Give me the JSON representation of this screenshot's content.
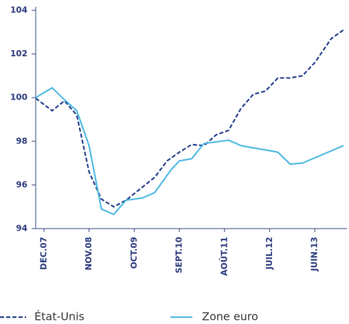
{
  "chart_data": {
    "type": "line",
    "xlim": [
      "2007-10",
      "2014-01"
    ],
    "xticks": [
      {
        "value": "2007-12",
        "label": "DEC.07"
      },
      {
        "value": "2008-11",
        "label": "NOV.08"
      },
      {
        "value": "2009-10",
        "label": "OCT.09"
      },
      {
        "value": "2010-09",
        "label": "SEPT.10"
      },
      {
        "value": "2011-08",
        "label": "AOÛT.11"
      },
      {
        "value": "2012-07",
        "label": "JUIL.12"
      },
      {
        "value": "2013-06",
        "label": "JUIN.13"
      }
    ],
    "ylim": [
      94,
      104
    ],
    "yticks": [
      94,
      96,
      98,
      100,
      102,
      104
    ],
    "series": [
      {
        "name": "État-Unis",
        "color": "#1f3a8a",
        "dashed": true,
        "x": [
          "2007-10",
          "2008-02",
          "2008-05",
          "2008-08",
          "2008-11",
          "2009-02",
          "2009-05",
          "2009-08",
          "2009-11",
          "2010-03",
          "2010-06",
          "2010-09",
          "2010-12",
          "2011-03",
          "2011-06",
          "2011-09",
          "2011-12",
          "2012-03",
          "2012-06",
          "2012-09",
          "2012-12",
          "2013-03",
          "2013-06",
          "2013-10",
          "2014-01"
        ],
        "values": [
          99.97,
          99.4,
          99.85,
          99.2,
          96.6,
          95.35,
          95.0,
          95.3,
          95.75,
          96.35,
          97.1,
          97.5,
          97.85,
          97.8,
          98.3,
          98.5,
          99.5,
          100.15,
          100.3,
          100.9,
          100.9,
          101.0,
          101.6,
          102.7,
          103.1
        ]
      },
      {
        "name": "Zone euro",
        "color": "#4ab8e0",
        "dashed": false,
        "x": [
          "2007-10",
          "2008-02",
          "2008-05",
          "2008-08",
          "2008-11",
          "2009-02",
          "2009-05",
          "2009-08",
          "2009-12",
          "2010-03",
          "2010-07",
          "2010-09",
          "2010-12",
          "2011-03",
          "2011-09",
          "2011-12",
          "2012-03",
          "2012-09",
          "2012-12",
          "2013-03",
          "2014-01"
        ],
        "values": [
          100.0,
          100.45,
          99.9,
          99.4,
          97.8,
          94.9,
          94.65,
          95.3,
          95.4,
          95.65,
          96.7,
          97.1,
          97.2,
          97.9,
          98.05,
          97.8,
          97.7,
          97.5,
          96.95,
          97.0,
          97.8
        ]
      }
    ]
  }
}
